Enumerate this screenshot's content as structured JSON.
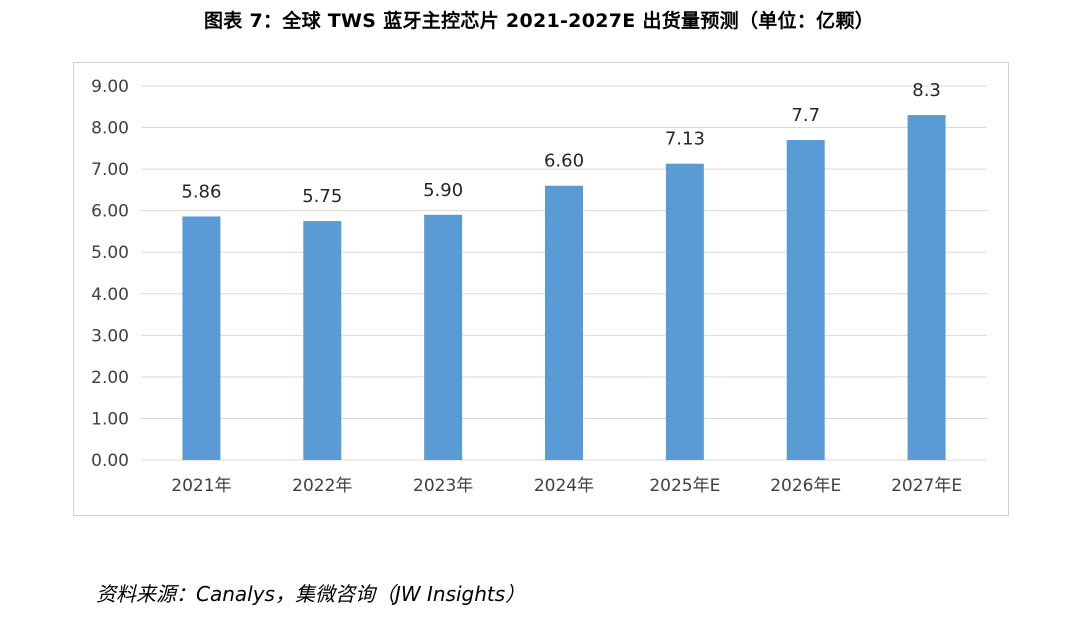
{
  "title": "图表 7：全球 TWS 蓝牙主控芯片 2021-2027E 出货量预测（单位：亿颗）",
  "source": "资料来源：Canalys，集微咨询（JW Insights）",
  "colors": {
    "bar": "#5b9bd5",
    "grid": "#d9d9d9",
    "axis_text": "#404040"
  },
  "chart_data": {
    "type": "bar",
    "title": "图表 7：全球 TWS 蓝牙主控芯片 2021-2027E 出货量预测（单位：亿颗）",
    "xlabel": "",
    "ylabel": "",
    "ylim": [
      0,
      9
    ],
    "y_ticks": [
      "0.00",
      "1.00",
      "2.00",
      "3.00",
      "4.00",
      "5.00",
      "6.00",
      "7.00",
      "8.00",
      "9.00"
    ],
    "grid": true,
    "legend": "none",
    "categories": [
      "2021年",
      "2022年",
      "2023年",
      "2024年",
      "2025年E",
      "2026年E",
      "2027年E"
    ],
    "values": [
      5.86,
      5.75,
      5.9,
      6.6,
      7.13,
      7.7,
      8.3
    ],
    "data_labels": [
      "5.86",
      "5.75",
      "5.90",
      "6.60",
      "7.13",
      "7.7",
      "8.3"
    ]
  }
}
